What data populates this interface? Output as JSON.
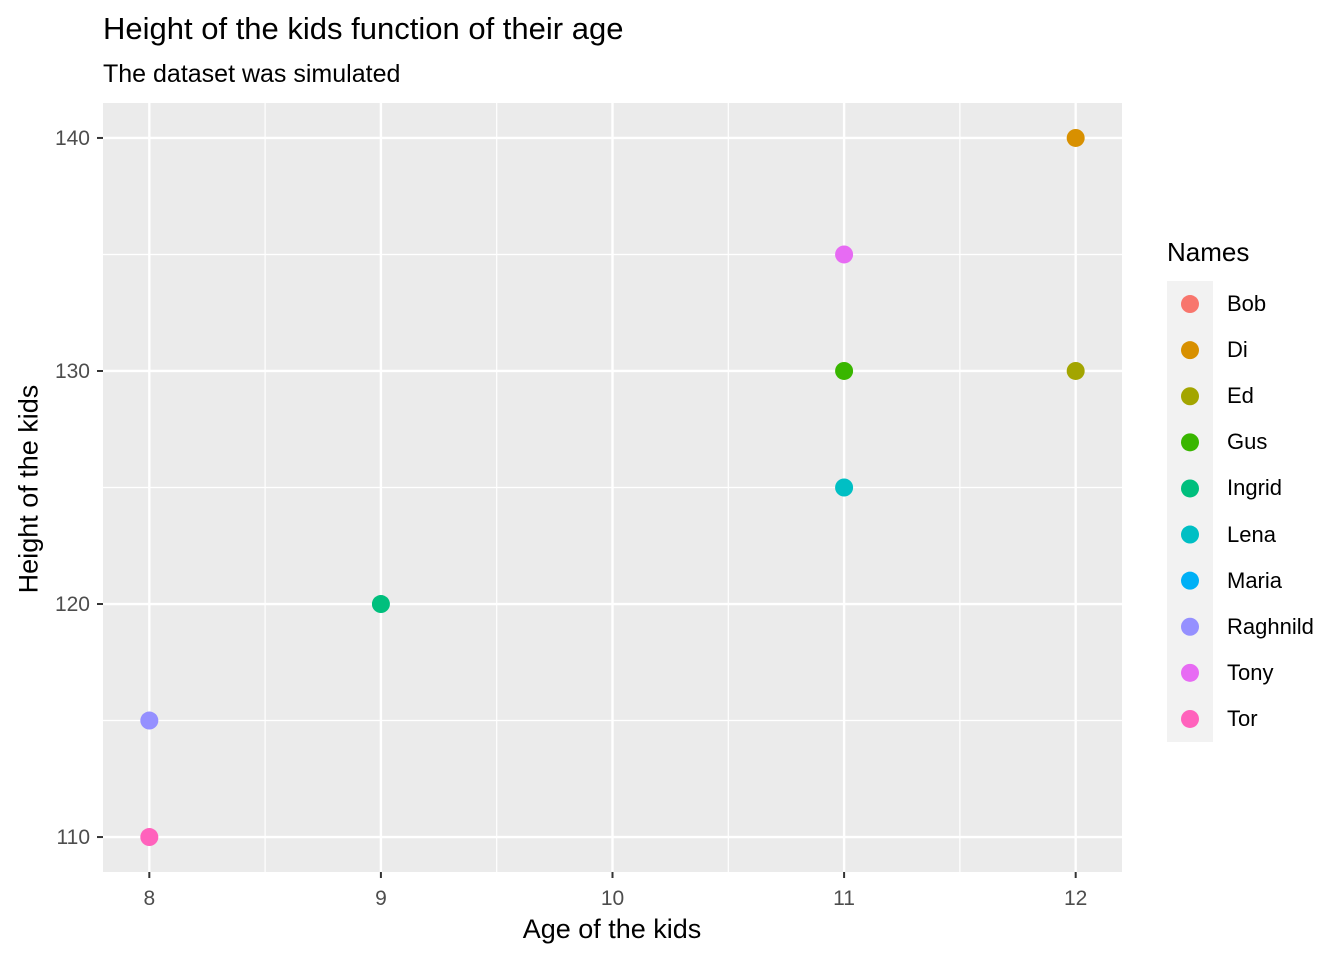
{
  "chart_data": {
    "type": "scatter",
    "title": "Height of the kids function of their age",
    "subtitle": "The dataset was simulated",
    "xlabel": "Age of the kids",
    "ylabel": "Height of the kids",
    "xlim": [
      7.8,
      12.2
    ],
    "ylim": [
      108.5,
      141.5
    ],
    "x_ticks": [
      8,
      9,
      10,
      11,
      12
    ],
    "y_ticks": [
      110,
      120,
      130,
      140
    ],
    "grid": true,
    "legend_title": "Names",
    "legend_position": "right",
    "colors": {
      "panel_background": "#EBEBEB",
      "grid": "#FFFFFF"
    },
    "series": [
      {
        "name": "Bob",
        "color": "#F8766D",
        "points": []
      },
      {
        "name": "Di",
        "color": "#D89000",
        "points": [
          {
            "x": 12,
            "y": 140
          }
        ]
      },
      {
        "name": "Ed",
        "color": "#A3A500",
        "points": [
          {
            "x": 12,
            "y": 130
          }
        ]
      },
      {
        "name": "Gus",
        "color": "#39B600",
        "points": [
          {
            "x": 11,
            "y": 130
          }
        ]
      },
      {
        "name": "Ingrid",
        "color": "#00BF7D",
        "points": [
          {
            "x": 9,
            "y": 120
          }
        ]
      },
      {
        "name": "Lena",
        "color": "#00BFC4",
        "points": [
          {
            "x": 11,
            "y": 125
          }
        ]
      },
      {
        "name": "Maria",
        "color": "#00B0F6",
        "points": []
      },
      {
        "name": "Raghnild",
        "color": "#9590FF",
        "points": [
          {
            "x": 8,
            "y": 115
          }
        ]
      },
      {
        "name": "Tony",
        "color": "#E76BF3",
        "points": [
          {
            "x": 11,
            "y": 135
          }
        ]
      },
      {
        "name": "Tor",
        "color": "#FF62BC",
        "points": [
          {
            "x": 8,
            "y": 110
          }
        ]
      }
    ]
  }
}
